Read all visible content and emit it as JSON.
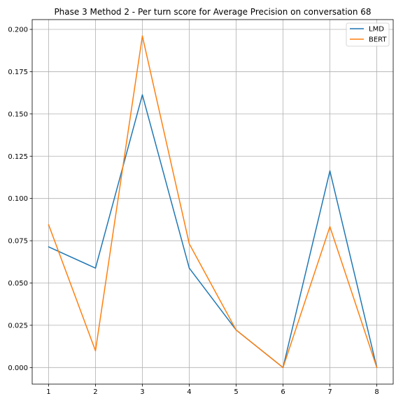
{
  "chart_data": {
    "type": "line",
    "title": "Phase 3 Method 2 - Per turn score for Average Precision on conversation 68",
    "xlabel": "",
    "ylabel": "",
    "x": [
      1,
      2,
      3,
      4,
      5,
      6,
      7,
      8
    ],
    "x_ticks": [
      "1",
      "2",
      "3",
      "4",
      "5",
      "6",
      "7",
      "8"
    ],
    "y_ticks": [
      "0.000",
      "0.025",
      "0.050",
      "0.075",
      "0.100",
      "0.125",
      "0.150",
      "0.175",
      "0.200"
    ],
    "xlim": [
      0.65,
      8.35
    ],
    "ylim": [
      -0.0098,
      0.2058
    ],
    "grid": true,
    "legend_position": "top-right",
    "series": [
      {
        "name": "LMD",
        "color": "#1f77b4",
        "values": [
          0.0714,
          0.0588,
          0.1613,
          0.0588,
          0.0222,
          0.0,
          0.1163,
          0.0
        ]
      },
      {
        "name": "BERT",
        "color": "#ff7f0e",
        "values": [
          0.0845,
          0.0099,
          0.1961,
          0.0732,
          0.0222,
          0.0,
          0.0833,
          0.0
        ]
      }
    ]
  }
}
